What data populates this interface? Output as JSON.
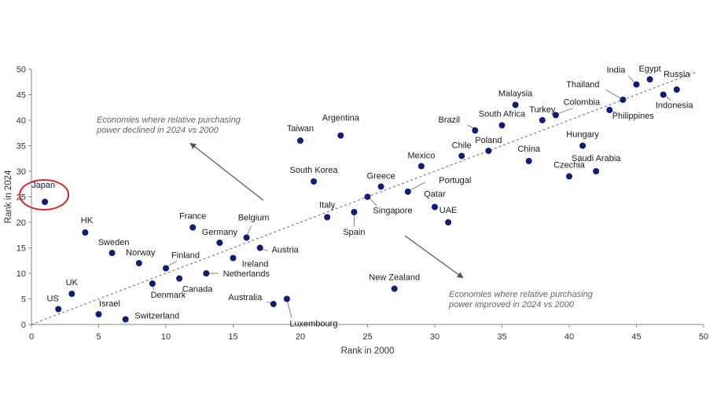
{
  "chart_data": {
    "type": "scatter",
    "xlabel": "Rank in 2000",
    "ylabel": "Rank in 2024",
    "xlim": [
      0,
      50
    ],
    "ylim": [
      0,
      50
    ],
    "xticks": [
      0,
      5,
      10,
      15,
      20,
      25,
      30,
      35,
      40,
      45,
      50
    ],
    "yticks": [
      0,
      5,
      10,
      15,
      20,
      25,
      30,
      35,
      40,
      45,
      50
    ],
    "reference_line": "diagonal dashed y = x",
    "grid": false,
    "marker_color": "#0b1f7a",
    "highlight_color": "#d62828",
    "points": [
      {
        "name": "Japan",
        "x": 1,
        "y": 24,
        "highlight": true
      },
      {
        "name": "US",
        "x": 2,
        "y": 3
      },
      {
        "name": "UK",
        "x": 3,
        "y": 6
      },
      {
        "name": "HK",
        "x": 4,
        "y": 18
      },
      {
        "name": "Israel",
        "x": 5,
        "y": 2
      },
      {
        "name": "Sweden",
        "x": 6,
        "y": 14
      },
      {
        "name": "Switzerland",
        "x": 7,
        "y": 1
      },
      {
        "name": "Norway",
        "x": 8,
        "y": 12
      },
      {
        "name": "Denmark",
        "x": 9,
        "y": 8
      },
      {
        "name": "Finland",
        "x": 10,
        "y": 11
      },
      {
        "name": "Canada",
        "x": 11,
        "y": 9
      },
      {
        "name": "France",
        "x": 12,
        "y": 19
      },
      {
        "name": "Netherlands",
        "x": 13,
        "y": 10
      },
      {
        "name": "Germany",
        "x": 14,
        "y": 16
      },
      {
        "name": "Ireland",
        "x": 15,
        "y": 13
      },
      {
        "name": "Belgium",
        "x": 16,
        "y": 17
      },
      {
        "name": "Austria",
        "x": 17,
        "y": 15
      },
      {
        "name": "Australia",
        "x": 18,
        "y": 4
      },
      {
        "name": "Luxembourg",
        "x": 19,
        "y": 5
      },
      {
        "name": "Taiwan",
        "x": 20,
        "y": 36
      },
      {
        "name": "South Korea",
        "x": 21,
        "y": 28
      },
      {
        "name": "Italy",
        "x": 22,
        "y": 21
      },
      {
        "name": "Argentina",
        "x": 23,
        "y": 37
      },
      {
        "name": "Spain",
        "x": 24,
        "y": 22
      },
      {
        "name": "Singapore",
        "x": 25,
        "y": 25
      },
      {
        "name": "Greece",
        "x": 26,
        "y": 27
      },
      {
        "name": "New Zealand",
        "x": 27,
        "y": 7
      },
      {
        "name": "Portugal",
        "x": 28,
        "y": 26
      },
      {
        "name": "Mexico",
        "x": 29,
        "y": 31
      },
      {
        "name": "Qatar",
        "x": 30,
        "y": 23
      },
      {
        "name": "UAE",
        "x": 31,
        "y": 20
      },
      {
        "name": "Chile",
        "x": 32,
        "y": 33
      },
      {
        "name": "Brazil",
        "x": 33,
        "y": 38
      },
      {
        "name": "Poland",
        "x": 34,
        "y": 34
      },
      {
        "name": "South Africa",
        "x": 35,
        "y": 39
      },
      {
        "name": "Malaysia",
        "x": 36,
        "y": 43
      },
      {
        "name": "China",
        "x": 37,
        "y": 32
      },
      {
        "name": "Turkey",
        "x": 38,
        "y": 40
      },
      {
        "name": "Colombia",
        "x": 39,
        "y": 41
      },
      {
        "name": "Czechia",
        "x": 40,
        "y": 29
      },
      {
        "name": "Hungary",
        "x": 41,
        "y": 35
      },
      {
        "name": "Saudi Arabia",
        "x": 42,
        "y": 30
      },
      {
        "name": "Philippines",
        "x": 43,
        "y": 42
      },
      {
        "name": "Thailand",
        "x": 44,
        "y": 44
      },
      {
        "name": "India",
        "x": 45,
        "y": 47
      },
      {
        "name": "Egypt",
        "x": 46,
        "y": 48
      },
      {
        "name": "Indonesia",
        "x": 47,
        "y": 45
      },
      {
        "name": "Russia",
        "x": 48,
        "y": 46
      }
    ],
    "annotations": [
      {
        "lines": [
          "Economies where relative purchasing",
          "power declined in 2024 vs 2000"
        ]
      },
      {
        "lines": [
          "Economies where relative purchasing",
          "power improved in 2024 vs 2000"
        ]
      }
    ]
  }
}
